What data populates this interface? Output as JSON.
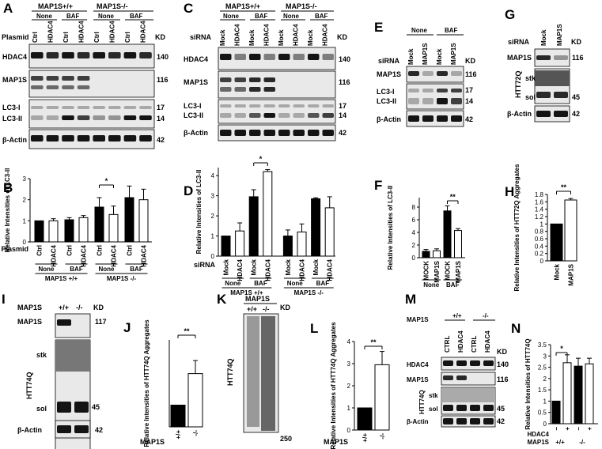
{
  "panels": {
    "A": {
      "letter": "A",
      "genotype_pos": "MAP1S+/+",
      "genotype_neg": "MAP1S-/-",
      "none": "None",
      "baf": "BAF",
      "row_label": "Plasmid",
      "lanes": [
        "Ctrl",
        "HDAC4",
        "Ctrl",
        "HDAC4",
        "Ctrl",
        "HDAC4",
        "Ctrl",
        "HDAC4"
      ],
      "kd": "KD",
      "blots": [
        {
          "name": "HDAC4",
          "size": "140"
        },
        {
          "name": "MAP1S",
          "size": "116"
        },
        {
          "name": "LC3-I",
          "size": "17"
        },
        {
          "name": "LC3-II",
          "size": "14"
        },
        {
          "name": "β-Actin",
          "size": "42"
        }
      ]
    },
    "C": {
      "letter": "C",
      "genotype_pos": "MAP1S+/+",
      "genotype_neg": "MAP1S-/-",
      "none": "None",
      "baf": "BAF",
      "row_label": "siRNA",
      "lanes": [
        "Mock",
        "HDAC4",
        "Mock",
        "HDAC4",
        "Mock",
        "HDAC4",
        "Mock",
        "HDAC4"
      ],
      "kd": "KD",
      "blots": [
        {
          "name": "HDAC4",
          "size": "140"
        },
        {
          "name": "MAP1S",
          "size": "116"
        },
        {
          "name": "LC3-I",
          "size": "17"
        },
        {
          "name": "LC3-II",
          "size": "14"
        },
        {
          "name": "β-Actin",
          "size": "42"
        }
      ]
    },
    "E": {
      "letter": "E",
      "none": "None",
      "baf": "BAF",
      "row_label": "siRNA",
      "lanes": [
        "Mock",
        "MAP1S",
        "Mock",
        "MAP1S"
      ],
      "kd": "KD",
      "blots": [
        {
          "name": "MAP1S",
          "size": "116"
        },
        {
          "name": "LC3-I",
          "size": "17"
        },
        {
          "name": "LC3-II",
          "size": "14"
        },
        {
          "name": "β-Actin",
          "size": "42"
        }
      ]
    },
    "G": {
      "letter": "G",
      "row_label": "siRNA",
      "lanes": [
        "Mock",
        "MAP1S"
      ],
      "kd": "KD",
      "htt": "HTT72Q",
      "stk": "stk",
      "sol": "sol",
      "blots": [
        {
          "name": "MAP1S",
          "size": "116"
        },
        {
          "name": "",
          "size": "45"
        },
        {
          "name": "β-Actin",
          "size": "42"
        }
      ]
    },
    "I": {
      "letter": "I",
      "row_label": "MAP1S",
      "lanes": [
        "+/+",
        "-/-"
      ],
      "kd": "KD",
      "htt": "HTT74Q",
      "stk": "stk",
      "sol": "sol",
      "blots": [
        {
          "name": "MAP1S",
          "size": "117"
        },
        {
          "name": "",
          "size": "45"
        },
        {
          "name": "β-Actin",
          "size": "42"
        }
      ]
    },
    "K": {
      "letter": "K",
      "row_label": "MAP1S",
      "lanes": [
        "+/+",
        "-/-"
      ],
      "kd": "KD",
      "htt": "HTT74Q",
      "size": "250"
    },
    "M": {
      "letter": "M",
      "row_label": "MAP1S",
      "geno": [
        "+/+",
        "-/-"
      ],
      "lanes": [
        "CTRL",
        "HDAC4",
        "CTRL",
        "HDAC4"
      ],
      "kd": "KD",
      "htt": "HTT74Q",
      "stk": "stk",
      "sol": "sol",
      "blots": [
        {
          "name": "HDAC4",
          "size": "140"
        },
        {
          "name": "MAP1S",
          "size": "116"
        },
        {
          "name": "",
          "size": "45"
        },
        {
          "name": "β-Actin",
          "size": "42"
        }
      ]
    }
  },
  "chart_data": [
    {
      "id": "B",
      "type": "bar",
      "ylabel": "Relative Intensities of LC3-II",
      "ylim": [
        0,
        3
      ],
      "yticks": [
        0,
        1,
        2,
        3
      ],
      "row_label": "Plasmid",
      "categories": [
        "Ctrl",
        "HDAC4",
        "Ctrl",
        "HDAC4",
        "Ctrl",
        "HDAC4",
        "Ctrl",
        "HDAC4"
      ],
      "values": [
        1.0,
        1.0,
        1.05,
        1.15,
        1.65,
        1.3,
        2.1,
        2.0
      ],
      "errors": [
        0.0,
        0.1,
        0.1,
        0.1,
        0.45,
        0.4,
        0.55,
        0.5
      ],
      "fills": [
        "#000",
        "#fff",
        "#000",
        "#fff",
        "#000",
        "#fff",
        "#000",
        "#fff"
      ],
      "treatment_labels": [
        "None",
        "BAF",
        "None",
        "BAF"
      ],
      "group_labels": [
        "MAP1S +/+",
        "MAP1S -/-"
      ],
      "sig": [
        {
          "label": "*",
          "from": 4,
          "to": 5
        }
      ]
    },
    {
      "id": "D",
      "type": "bar",
      "ylabel": "Relative Intensities of LC3-II",
      "ylim": [
        0,
        4.4
      ],
      "yticks": [
        0,
        1,
        2,
        3,
        4
      ],
      "row_label": "siRNA",
      "categories": [
        "Mock",
        "HDAC4",
        "Mock",
        "HDAC4",
        "Mock",
        "HDAC4",
        "Mock",
        "HDAC4"
      ],
      "values": [
        1.0,
        1.25,
        2.95,
        4.2,
        1.0,
        1.2,
        2.85,
        2.4
      ],
      "errors": [
        0.0,
        0.4,
        0.35,
        0.1,
        0.3,
        0.4,
        0.05,
        0.55
      ],
      "fills": [
        "#000",
        "#fff",
        "#000",
        "#fff",
        "#000",
        "#fff",
        "#000",
        "#fff"
      ],
      "treatment_labels": [
        "None",
        "BAF",
        "None",
        "BAF"
      ],
      "group_labels": [
        "MAP1S +/+",
        "MAP1S -/-"
      ],
      "sig": [
        {
          "label": "*",
          "from": 2,
          "to": 3
        }
      ]
    },
    {
      "id": "F",
      "type": "bar",
      "ylabel": "Relative Intensities of LC3-II",
      "ylim": [
        0,
        9.5
      ],
      "yticks": [
        0,
        2,
        4,
        6,
        8
      ],
      "categories": [
        "MOCK",
        "MAP1S",
        "MOCK",
        "MAP1S"
      ],
      "values": [
        1.0,
        1.1,
        7.4,
        4.3
      ],
      "errors": [
        0.3,
        0.3,
        0.8,
        0.3
      ],
      "fills": [
        "#000",
        "#fff",
        "#000",
        "#fff"
      ],
      "treatment_labels": [
        "None",
        "BAF"
      ],
      "sig": [
        {
          "label": "**",
          "from": 2,
          "to": 3
        }
      ]
    },
    {
      "id": "H",
      "type": "bar",
      "ylabel": "Relative Intensities of HTT72Q Aggregates",
      "ylim": [
        0,
        1.8
      ],
      "yticks": [
        0,
        0.2,
        0.4,
        0.6,
        0.8,
        1.0,
        1.2,
        1.4,
        1.6,
        1.8
      ],
      "categories": [
        "Mock",
        "MAP1S"
      ],
      "values": [
        1.0,
        1.65
      ],
      "errors": [
        0.0,
        0.04
      ],
      "fills": [
        "#000",
        "#fff"
      ],
      "sig": [
        {
          "label": "**",
          "from": 0,
          "to": 1
        }
      ]
    },
    {
      "id": "J",
      "type": "bar",
      "ylabel": "Relative Intensities of HTT74Q Aggregates",
      "ylim": [
        0,
        4
      ],
      "yticks": [],
      "row_label": "MAP1S",
      "categories": [
        "+/+",
        "-/-"
      ],
      "values": [
        1.0,
        2.45
      ],
      "errors": [
        0.0,
        0.6
      ],
      "fills": [
        "#000",
        "#fff"
      ],
      "sig": [
        {
          "label": "**",
          "from": 0,
          "to": 1
        }
      ]
    },
    {
      "id": "L",
      "type": "bar",
      "ylabel": "Relative Intensities of HTT74Q Aggregates",
      "ylim": [
        0,
        4
      ],
      "yticks": [
        0,
        1,
        2,
        3,
        4
      ],
      "row_label": "MAP1S",
      "categories": [
        "+/+",
        "-/-"
      ],
      "values": [
        1.0,
        2.95
      ],
      "errors": [
        0.0,
        0.6
      ],
      "fills": [
        "#000",
        "#fff"
      ],
      "sig": [
        {
          "label": "**",
          "from": 0,
          "to": 1
        }
      ]
    },
    {
      "id": "N",
      "type": "bar",
      "ylabel": "Relative Intensities of HTT74Q",
      "ylim": [
        0,
        3.5
      ],
      "yticks": [
        0,
        0.5,
        1,
        1.5,
        2,
        2.5,
        3,
        3.5
      ],
      "row_labels": [
        "HDAC4",
        "MAP1S"
      ],
      "categories": [
        "–",
        "+",
        "–",
        "+"
      ],
      "values": [
        1.0,
        2.7,
        2.55,
        2.65
      ],
      "errors": [
        0.0,
        0.35,
        0.35,
        0.25
      ],
      "fills": [
        "#000",
        "#fff",
        "#000",
        "#fff"
      ],
      "group_labels": [
        "+/+",
        "-/-"
      ],
      "sig": [
        {
          "label": "*",
          "from": 0,
          "to": 1
        }
      ]
    }
  ]
}
